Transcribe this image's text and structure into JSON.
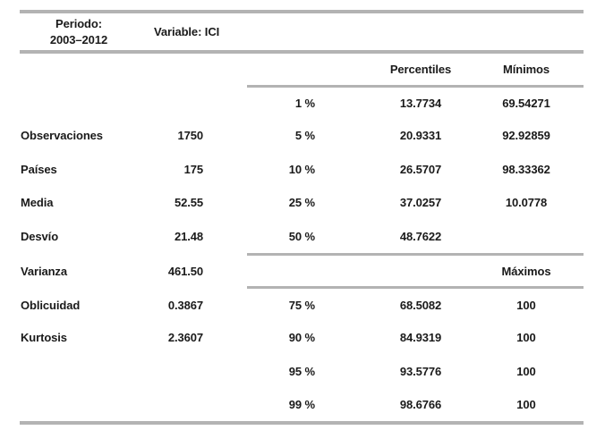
{
  "header": {
    "period_label": "Periodo:",
    "period_value": "2003–2012",
    "variable_label": "Variable: ICI"
  },
  "columns": {
    "percentiles": "Percentiles",
    "minimos": "Mínimos",
    "maximos": "Máximos"
  },
  "summary_stats": [
    {
      "label": "Observaciones",
      "value": "1750"
    },
    {
      "label": "Países",
      "value": "175"
    },
    {
      "label": "Media",
      "value": "52.55"
    },
    {
      "label": "Desvío",
      "value": "21.48"
    },
    {
      "label": "Varianza",
      "value": "461.50"
    },
    {
      "label": "Oblicuidad",
      "value": "0.3867"
    },
    {
      "label": "Kurtosis",
      "value": "2.3607"
    }
  ],
  "rows": {
    "r1": {
      "pct": "1 %",
      "perc": "13.7734",
      "min": "69.54271"
    },
    "r5": {
      "label": "Observaciones",
      "value": "1750",
      "pct": "5 %",
      "perc": "20.9331",
      "min": "92.92859"
    },
    "r10": {
      "label": "Países",
      "value": "175",
      "pct": "10 %",
      "perc": "26.5707",
      "min": "98.33362"
    },
    "r25": {
      "label": "Media",
      "value": "52.55",
      "pct": "25 %",
      "perc": "37.0257",
      "min": "10.0778"
    },
    "r50": {
      "label": "Desvío",
      "value": "21.48",
      "pct": "50 %",
      "perc": "48.7622",
      "min": ""
    },
    "rmax": {
      "label": "Varianza",
      "value": "461.50",
      "max_header": "Máximos"
    },
    "r75": {
      "label": "Oblicuidad",
      "value": "0.3867",
      "pct": "75 %",
      "perc": "68.5082",
      "max": "100"
    },
    "r90": {
      "label": "Kurtosis",
      "value": "2.3607",
      "pct": "90 %",
      "perc": "84.9319",
      "max": "100"
    },
    "r95": {
      "pct": "95 %",
      "perc": "93.5776",
      "max": "100"
    },
    "r99": {
      "pct": "99 %",
      "perc": "98.6766",
      "max": "100"
    }
  }
}
